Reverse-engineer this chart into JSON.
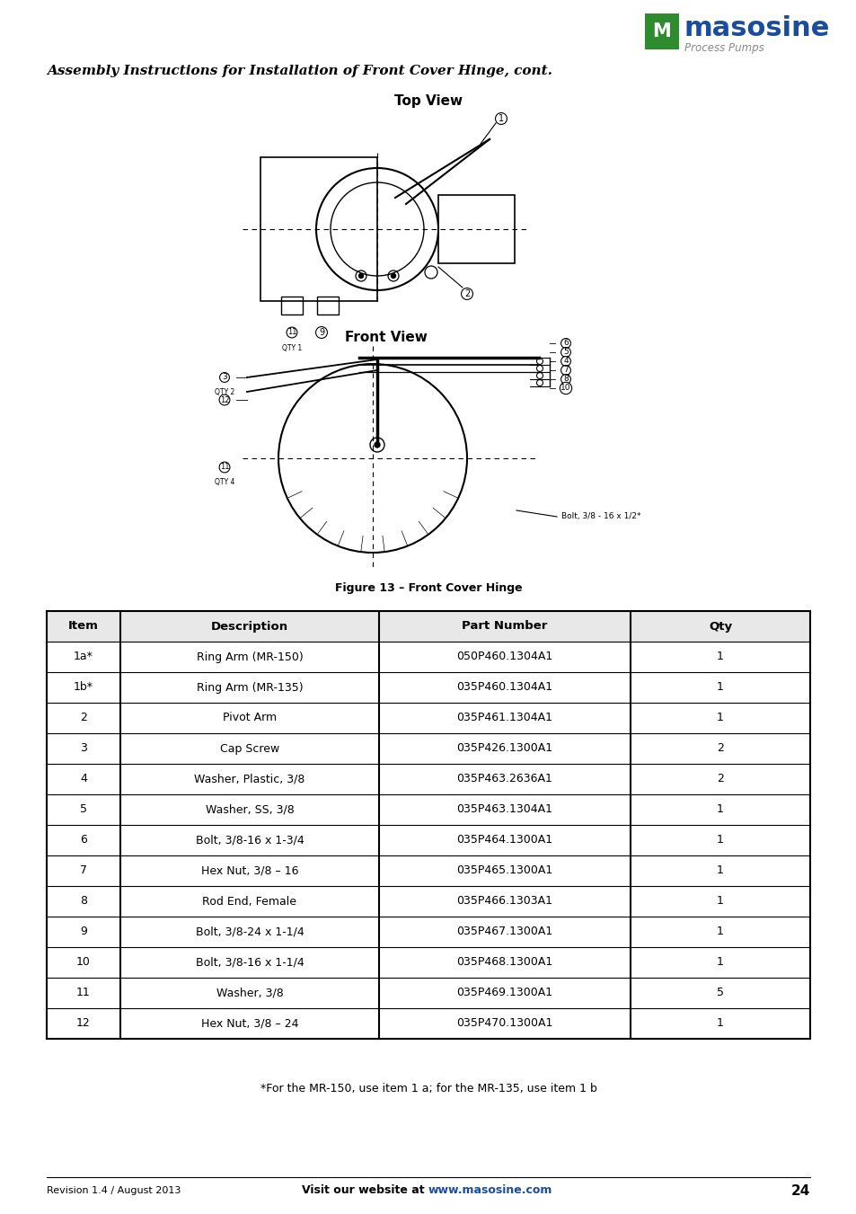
{
  "page_bg": "#ffffff",
  "logo_text": "masosine",
  "logo_subtext": "Process Pumps",
  "logo_color": "#1a4d9e",
  "logo_green": "#2e8b2e",
  "title_text": "Assembly Instructions for Installation of Front Cover Hinge, cont.",
  "title_fontsize": 11,
  "figure_caption": "Figure 13 – Front Cover Hinge",
  "top_view_label": "Top View",
  "front_view_label": "Front View",
  "table_headers": [
    "Item",
    "Description",
    "Part Number",
    "Qty"
  ],
  "table_rows": [
    [
      "1a*",
      "Ring Arm (MR-150)",
      "050P460.1304A1",
      "1"
    ],
    [
      "1b*",
      "Ring Arm (MR-135)",
      "035P460.1304A1",
      "1"
    ],
    [
      "2",
      "Pivot Arm",
      "035P461.1304A1",
      "1"
    ],
    [
      "3",
      "Cap Screw",
      "035P426.1300A1",
      "2"
    ],
    [
      "4",
      "Washer, Plastic, 3/8",
      "035P463.2636A1",
      "2"
    ],
    [
      "5",
      "Washer, SS, 3/8",
      "035P463.1304A1",
      "1"
    ],
    [
      "6",
      "Bolt, 3/8-16 x 1-3/4",
      "035P464.1300A1",
      "1"
    ],
    [
      "7",
      "Hex Nut, 3/8 – 16",
      "035P465.1300A1",
      "1"
    ],
    [
      "8",
      "Rod End, Female",
      "035P466.1303A1",
      "1"
    ],
    [
      "9",
      "Bolt, 3/8-24 x 1-1/4",
      "035P467.1300A1",
      "1"
    ],
    [
      "10",
      "Bolt, 3/8-16 x 1-1/4",
      "035P468.1300A1",
      "1"
    ],
    [
      "11",
      "Washer, 3/8",
      "035P469.1300A1",
      "5"
    ],
    [
      "12",
      "Hex Nut, 3/8 – 24",
      "035P470.1300A1",
      "1"
    ]
  ],
  "footnote": "*For the MR-150, use item 1 a; for the MR-135, use item 1 b",
  "footer_left": "Revision 1.4 / August 2013",
  "footer_center_pre": "Visit our website at ",
  "footer_url": "www.masosine.com",
  "footer_page": "24",
  "table_fontsize": 9,
  "header_fontsize": 9.5
}
